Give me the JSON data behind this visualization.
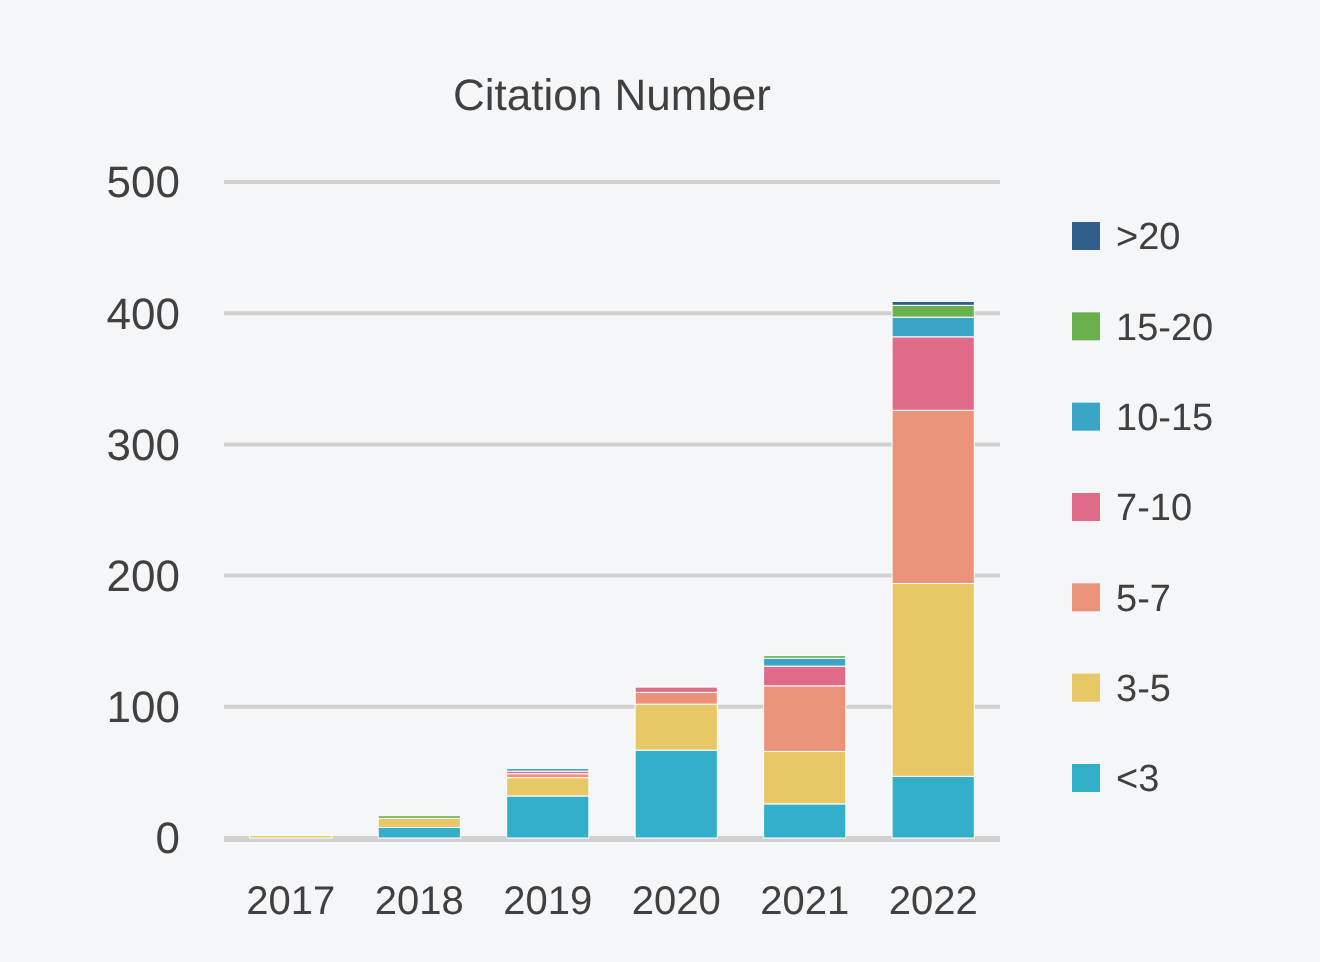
{
  "chart_data": {
    "type": "bar",
    "title": "Citation Number",
    "stacked": true,
    "categories": [
      "2017",
      "2018",
      "2019",
      "2020",
      "2021",
      "2022"
    ],
    "series": [
      {
        "name": "<3",
        "color": "#33aecb",
        "values": [
          0,
          8,
          32,
          67,
          26,
          47
        ]
      },
      {
        "name": "3-5",
        "color": "#e8c766",
        "values": [
          2,
          7,
          14,
          35,
          40,
          147
        ]
      },
      {
        "name": "5-7",
        "color": "#ea9379",
        "values": [
          0,
          0,
          3,
          9,
          50,
          132
        ]
      },
      {
        "name": "7-10",
        "color": "#e06b88",
        "values": [
          0,
          0,
          2,
          4,
          15,
          56
        ]
      },
      {
        "name": "10-15",
        "color": "#3aa6c6",
        "values": [
          0,
          0,
          2,
          0,
          6,
          15
        ]
      },
      {
        "name": "15-20",
        "color": "#6ab04c",
        "values": [
          0,
          2,
          0,
          0,
          2,
          9
        ]
      },
      {
        "name": ">20",
        "color": "#2f5f8a",
        "values": [
          0,
          0,
          0,
          0,
          0,
          3
        ]
      }
    ],
    "ylim": [
      0,
      500
    ],
    "yticks": [
      0,
      100,
      200,
      300,
      400,
      500
    ],
    "grid": "y",
    "legend": "right"
  }
}
